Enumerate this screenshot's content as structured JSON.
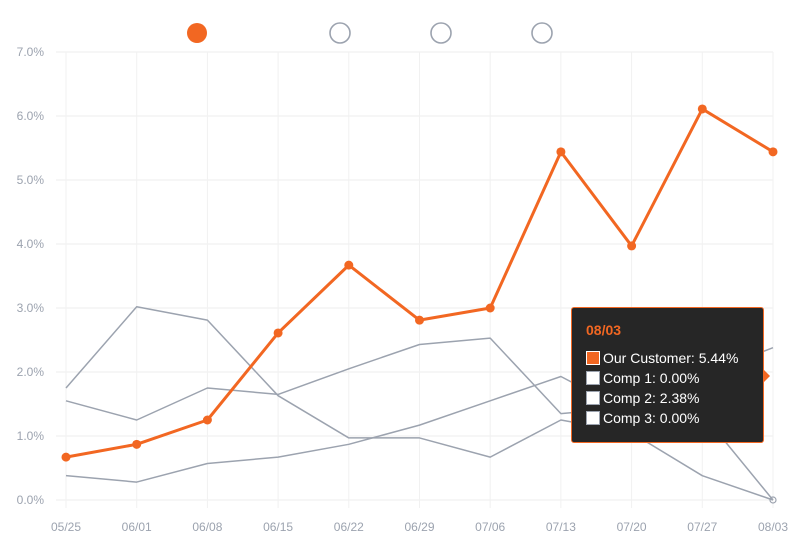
{
  "chart_data": {
    "type": "line",
    "categories": [
      "05/25",
      "06/01",
      "06/08",
      "06/15",
      "06/22",
      "06/29",
      "07/06",
      "07/13",
      "07/20",
      "07/27",
      "08/03"
    ],
    "ylim": [
      0,
      7
    ],
    "yticks": [
      "0.0%",
      "1.0%",
      "2.0%",
      "3.0%",
      "4.0%",
      "5.0%",
      "6.0%",
      "7.0%"
    ],
    "grid": true,
    "series": [
      {
        "name": "Our Customer",
        "color": "#f26722",
        "highlight": true,
        "values": [
          0.67,
          0.87,
          1.25,
          2.61,
          3.67,
          2.81,
          3.0,
          5.44,
          3.97,
          6.11,
          5.44
        ]
      },
      {
        "name": "Comp 1",
        "color": "#9ca3af",
        "highlight": false,
        "values": [
          1.75,
          3.02,
          2.81,
          1.63,
          0.97,
          0.97,
          0.67,
          1.25,
          1.05,
          0.38,
          0.0
        ]
      },
      {
        "name": "Comp 2",
        "color": "#9ca3af",
        "highlight": false,
        "values": [
          1.55,
          1.25,
          1.75,
          1.65,
          2.05,
          2.43,
          2.53,
          1.35,
          1.45,
          1.95,
          2.38
        ]
      },
      {
        "name": "Comp 3",
        "color": "#9ca3af",
        "highlight": false,
        "values": [
          0.38,
          0.28,
          0.57,
          0.67,
          0.87,
          1.17,
          1.55,
          1.93,
          1.35,
          1.35,
          0.0
        ]
      }
    ],
    "legend_markers": [
      "filled",
      "hollow",
      "hollow",
      "hollow"
    ]
  },
  "tooltip": {
    "date": "08/03",
    "rows": [
      {
        "text": "Our Customer: 5.44%",
        "active": true
      },
      {
        "text": "Comp 1: 0.00%",
        "active": false
      },
      {
        "text": "Comp 2: 2.38%",
        "active": false
      },
      {
        "text": "Comp 3: 0.00%",
        "active": false
      }
    ]
  }
}
